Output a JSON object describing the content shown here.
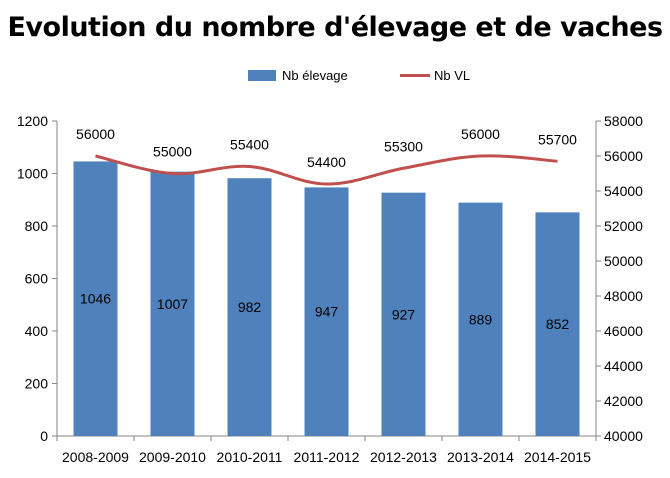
{
  "chart_data": {
    "type": "bar",
    "title": "Evolution du nombre d'élevage et de vaches",
    "categories": [
      "2008-2009",
      "2009-2010",
      "2010-2011",
      "2011-2012",
      "2012-2013",
      "2013-2014",
      "2014-2015"
    ],
    "series": [
      {
        "name": "Nb élevage",
        "type": "bar",
        "axis": "left",
        "color": "#4F81BD",
        "values": [
          1046,
          1007,
          982,
          947,
          927,
          889,
          852
        ]
      },
      {
        "name": "Nb VL",
        "type": "line",
        "axis": "right",
        "color": "#C0504D",
        "values": [
          56000,
          55000,
          55400,
          54400,
          55300,
          56000,
          55700
        ]
      }
    ],
    "ylim_left": [
      0,
      1200
    ],
    "yticks_left": [
      0,
      200,
      400,
      600,
      800,
      1000,
      1200
    ],
    "ylim_right": [
      40000,
      58000
    ],
    "yticks_right": [
      40000,
      42000,
      44000,
      46000,
      48000,
      50000,
      52000,
      54000,
      56000,
      58000
    ],
    "grid": false,
    "legend_position": "top"
  }
}
